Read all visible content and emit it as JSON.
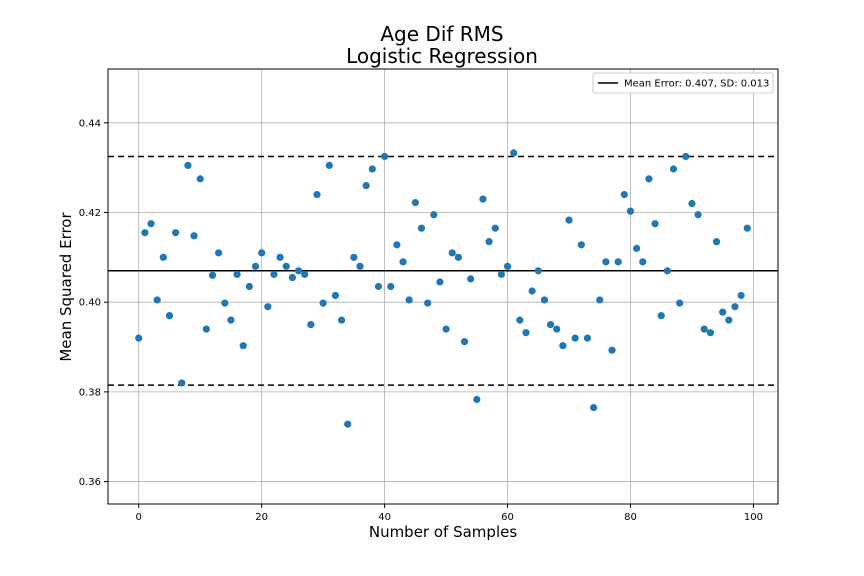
{
  "chart_data": {
    "type": "scatter",
    "title": "Age Dif RMS",
    "subtitle": "Logistic Regression",
    "xlabel": "Number of Samples",
    "ylabel": "Mean Squared Error",
    "xlim": [
      -5,
      104
    ],
    "ylim": [
      0.355,
      0.452
    ],
    "xticks": [
      0,
      20,
      40,
      60,
      80,
      100
    ],
    "yticks": [
      0.36,
      0.38,
      0.4,
      0.42,
      0.44
    ],
    "xtick_labels": [
      "0",
      "20",
      "40",
      "60",
      "80",
      "100"
    ],
    "ytick_labels": [
      "0.36",
      "0.38",
      "0.40",
      "0.42",
      "0.44"
    ],
    "grid": true,
    "legend_position": "top-right",
    "legend_label": "Mean Error: 0.407, SD: 0.013",
    "mean": 0.407,
    "upper_bound": 0.4325,
    "lower_bound": 0.3815,
    "point_color": "#1f77b4",
    "line_color": "#000000",
    "x": [
      0,
      1,
      2,
      3,
      4,
      5,
      6,
      7,
      8,
      9,
      10,
      11,
      12,
      13,
      14,
      15,
      16,
      17,
      18,
      19,
      20,
      21,
      22,
      23,
      24,
      25,
      26,
      27,
      28,
      29,
      30,
      31,
      32,
      33,
      34,
      35,
      36,
      37,
      38,
      39,
      40,
      41,
      42,
      43,
      44,
      45,
      46,
      47,
      48,
      49,
      50,
      51,
      52,
      53,
      54,
      55,
      56,
      57,
      58,
      59,
      60,
      61,
      62,
      63,
      64,
      65,
      66,
      67,
      68,
      69,
      70,
      71,
      72,
      73,
      74,
      75,
      76,
      77,
      78,
      79,
      80,
      81,
      82,
      83,
      84,
      85,
      86,
      87,
      88,
      89,
      90,
      91,
      92,
      93,
      94,
      95,
      96,
      97,
      98,
      99
    ],
    "y": [
      0.392,
      0.4155,
      0.4175,
      0.4005,
      0.41,
      0.397,
      0.4155,
      0.382,
      0.4305,
      0.4148,
      0.4275,
      0.394,
      0.406,
      0.411,
      0.3998,
      0.396,
      0.4062,
      0.3903,
      0.4035,
      0.408,
      0.411,
      0.399,
      0.4062,
      0.41,
      0.408,
      0.4055,
      0.407,
      0.4062,
      0.395,
      0.424,
      0.3998,
      0.4305,
      0.4015,
      0.396,
      0.3728,
      0.41,
      0.408,
      0.426,
      0.4297,
      0.4035,
      0.4325,
      0.4035,
      0.4128,
      0.409,
      0.4005,
      0.4222,
      0.4165,
      0.3998,
      0.4195,
      0.4045,
      0.394,
      0.411,
      0.41,
      0.3912,
      0.4052,
      0.3783,
      0.423,
      0.4135,
      0.4165,
      0.4062,
      0.408,
      0.4333,
      0.396,
      0.3932,
      0.4025,
      0.407,
      0.4005,
      0.395,
      0.394,
      0.3903,
      0.4183,
      0.392,
      0.4128,
      0.392,
      0.3765,
      0.4005,
      0.409,
      0.3893,
      0.409,
      0.424,
      0.4203,
      0.412,
      0.409,
      0.4275,
      0.4175,
      0.397,
      0.407,
      0.4297,
      0.3998,
      0.4325,
      0.422,
      0.4195,
      0.394,
      0.3932,
      0.4135,
      0.3978,
      0.396,
      0.399,
      0.4015,
      0.4165
    ]
  }
}
